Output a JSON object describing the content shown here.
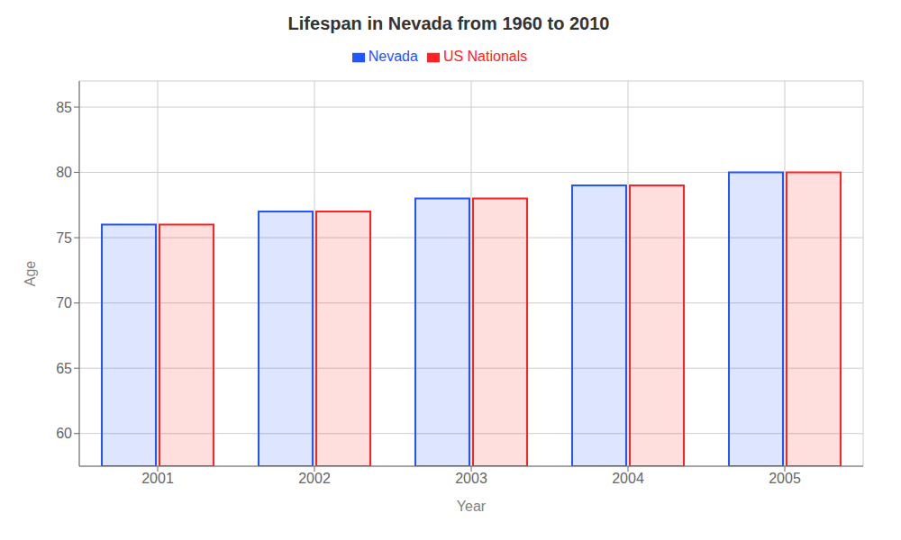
{
  "chart_data": {
    "type": "bar",
    "title": "Lifespan in Nevada from 1960 to 2010",
    "x_label": "Year",
    "y_label": "Age",
    "categories": [
      "2001",
      "2002",
      "2003",
      "2004",
      "2005"
    ],
    "series": [
      {
        "name": "Nevada",
        "color": "#2255ff",
        "values": [
          76,
          77,
          78,
          79,
          80
        ]
      },
      {
        "name": "US Nationals",
        "color": "#ff2222",
        "values": [
          76,
          77,
          78,
          79,
          80
        ]
      }
    ],
    "ylim": [
      57.5,
      87
    ],
    "yticks": [
      60,
      65,
      70,
      75,
      80,
      85
    ],
    "grid": true,
    "legend": "top"
  }
}
